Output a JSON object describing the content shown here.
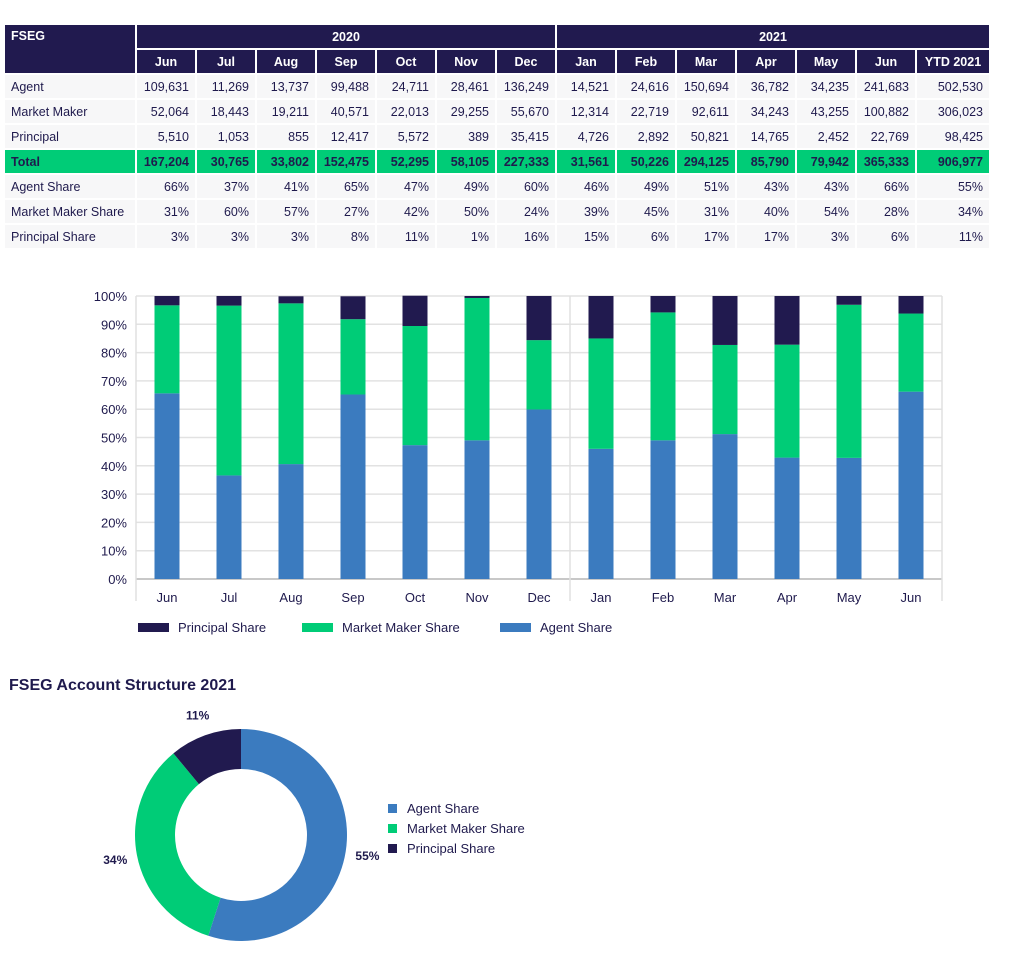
{
  "table": {
    "corner_label": "FSEG",
    "years": [
      {
        "label": "2020",
        "span": 7
      },
      {
        "label": "2021",
        "span": 7
      }
    ],
    "columns": [
      "Jun",
      "Jul",
      "Aug",
      "Sep",
      "Oct",
      "Nov",
      "Dec",
      "Jan",
      "Feb",
      "Mar",
      "Apr",
      "May",
      "Jun",
      "YTD 2021"
    ],
    "rows": [
      {
        "label": "Agent",
        "values": [
          "109,631",
          "11,269",
          "13,737",
          "99,488",
          "24,711",
          "28,461",
          "136,249",
          "14,521",
          "24,616",
          "150,694",
          "36,782",
          "34,235",
          "241,683",
          "502,530"
        ]
      },
      {
        "label": "Market Maker",
        "values": [
          "52,064",
          "18,443",
          "19,211",
          "40,571",
          "22,013",
          "29,255",
          "55,670",
          "12,314",
          "22,719",
          "92,611",
          "34,243",
          "43,255",
          "100,882",
          "306,023"
        ]
      },
      {
        "label": "Principal",
        "values": [
          "5,510",
          "1,053",
          "855",
          "12,417",
          "5,572",
          "389",
          "35,415",
          "4,726",
          "2,892",
          "50,821",
          "14,765",
          "2,452",
          "22,769",
          "98,425"
        ]
      },
      {
        "label": "Total",
        "total": true,
        "values": [
          "167,204",
          "30,765",
          "33,802",
          "152,475",
          "52,295",
          "58,105",
          "227,333",
          "31,561",
          "50,226",
          "294,125",
          "85,790",
          "79,942",
          "365,333",
          "906,977"
        ]
      },
      {
        "label": "Agent Share",
        "values": [
          "66%",
          "37%",
          "41%",
          "65%",
          "47%",
          "49%",
          "60%",
          "46%",
          "49%",
          "51%",
          "43%",
          "43%",
          "66%",
          "55%"
        ]
      },
      {
        "label": "Market Maker Share",
        "values": [
          "31%",
          "60%",
          "57%",
          "27%",
          "42%",
          "50%",
          "24%",
          "39%",
          "45%",
          "31%",
          "40%",
          "54%",
          "28%",
          "34%"
        ]
      },
      {
        "label": "Principal Share",
        "values": [
          "3%",
          "3%",
          "3%",
          "8%",
          "11%",
          "1%",
          "16%",
          "15%",
          "6%",
          "17%",
          "17%",
          "3%",
          "6%",
          "11%"
        ]
      }
    ]
  },
  "colors": {
    "agent": "#3b7bbf",
    "market_maker": "#00cc77",
    "principal": "#211a4f",
    "header_bg": "#211a4f",
    "total_bg": "#00cc77"
  },
  "chart_data": [
    {
      "type": "bar",
      "stacked": true,
      "percent": true,
      "title": "",
      "xlabel": "",
      "ylabel": "",
      "categories": [
        "Jun",
        "Jul",
        "Aug",
        "Sep",
        "Oct",
        "Nov",
        "Dec",
        "Jan",
        "Feb",
        "Mar",
        "Apr",
        "May",
        "Jun"
      ],
      "groups": [
        {
          "label": "2020",
          "count": 7
        },
        {
          "label": "2021",
          "count": 6
        }
      ],
      "series": [
        {
          "name": "Agent Share",
          "color": "#3b7bbf",
          "values": [
            65.6,
            36.6,
            40.6,
            65.2,
            47.3,
            49.0,
            59.9,
            46.0,
            49.0,
            51.2,
            42.9,
            42.8,
            66.2
          ]
        },
        {
          "name": "Market Maker Share",
          "color": "#00cc77",
          "values": [
            31.1,
            60.0,
            56.8,
            26.6,
            42.1,
            50.3,
            24.5,
            39.0,
            45.2,
            31.5,
            39.9,
            54.1,
            27.6
          ]
        },
        {
          "name": "Principal Share",
          "color": "#211a4f",
          "values": [
            3.3,
            3.4,
            2.5,
            8.1,
            10.7,
            0.7,
            15.6,
            15.0,
            5.8,
            17.3,
            17.2,
            3.1,
            6.2
          ]
        }
      ],
      "yticks": [
        "0%",
        "10%",
        "20%",
        "30%",
        "40%",
        "50%",
        "60%",
        "70%",
        "80%",
        "90%",
        "100%"
      ],
      "ylim": [
        0,
        100
      ],
      "grid": true,
      "legend": {
        "placement": "bottom",
        "entries": [
          "Principal Share",
          "Market Maker Share",
          "Agent Share"
        ]
      }
    },
    {
      "type": "pie",
      "donut": true,
      "title": "FSEG Account Structure 2021",
      "labels": [
        "Agent Share",
        "Market Maker Share",
        "Principal Share"
      ],
      "values": [
        55,
        34,
        11
      ],
      "data_labels": [
        "55%",
        "34%",
        "11%"
      ],
      "colors": [
        "#3b7bbf",
        "#00cc77",
        "#211a4f"
      ],
      "legend": {
        "placement": "right",
        "entries": [
          "Agent Share",
          "Market Maker Share",
          "Principal Share"
        ]
      }
    }
  ]
}
